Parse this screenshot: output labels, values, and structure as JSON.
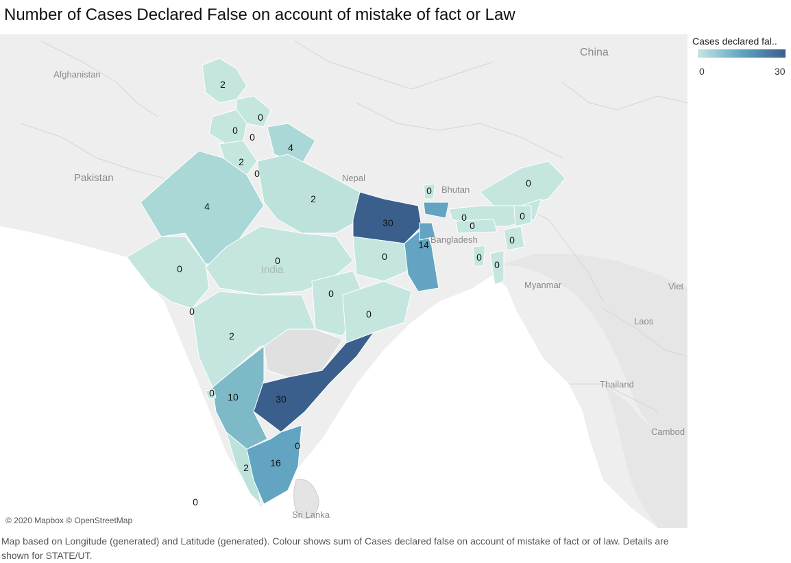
{
  "title": "Number of Cases Declared False on account of mistake of fact or Law",
  "legend": {
    "title": "Cases declared fal..",
    "min_label": "0",
    "max_label": "30"
  },
  "attribution": "© 2020 Mapbox © OpenStreetMap",
  "footnote": "Map based on Longitude (generated) and Latitude (generated).  Colour shows sum of Cases declared false on account of mistake of fact or of law.  Details are shown for STATE/UT.",
  "map_labels": [
    "Afghanistan",
    "Pakistan",
    "China",
    "Nepal",
    "Bhutan",
    "Bangladesh",
    "India",
    "Myanmar",
    "Laos",
    "Thailand",
    "Viet",
    "Cambod",
    "Sri Lanka"
  ],
  "values": [
    "2",
    "0",
    "0",
    "0",
    "4",
    "2",
    "0",
    "4",
    "2",
    "0",
    "30",
    "14",
    "0",
    "0",
    "0",
    "0",
    "0",
    "0",
    "0",
    "0",
    "0",
    "0",
    "0",
    "0",
    "2",
    "0",
    "10",
    "30",
    "0",
    "2",
    "16",
    "0"
  ],
  "colors": {
    "light": "#c4e6df",
    "mid": "#62a4c2",
    "dark": "#3b5f8c"
  }
}
